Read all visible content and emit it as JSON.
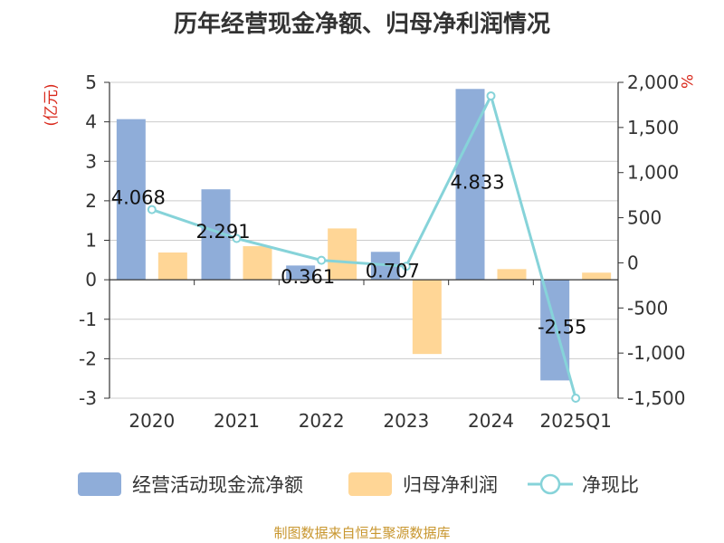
{
  "chart_data": {
    "type": "bar",
    "title": "历年经营现金净额、归母净利润情况",
    "categories": [
      "2020",
      "2021",
      "2022",
      "2023",
      "2024",
      "2025Q1"
    ],
    "y_left_unit": "(亿元)",
    "y_right_unit": "%",
    "y_left_range": [
      -3,
      5
    ],
    "y_left_ticks": [
      "5",
      "4",
      "3",
      "2",
      "1",
      "0",
      "-1",
      "-2",
      "-3"
    ],
    "y_right_range": [
      -1500,
      2000
    ],
    "y_right_ticks": [
      "2,000",
      "1,500",
      "1,000",
      "500",
      "0",
      "-500",
      "-1,000",
      "-1,500"
    ],
    "grid": true,
    "legend_position": "bottom",
    "series": [
      {
        "name": "经营活动现金流净额",
        "type": "bar",
        "axis": "left",
        "color": "#8fadd9",
        "values": [
          4.068,
          2.291,
          0.361,
          0.707,
          4.833,
          -2.55
        ],
        "labels": [
          "4.068",
          "2.291",
          "0.361",
          "0.707",
          "4.833",
          "-2.55"
        ]
      },
      {
        "name": "归母净利润",
        "type": "bar",
        "axis": "left",
        "color": "#ffd696",
        "values": [
          0.69,
          0.85,
          1.3,
          -1.88,
          0.27,
          0.18
        ]
      },
      {
        "name": "净现比",
        "type": "line",
        "axis": "right",
        "color": "#86d3d9",
        "values": [
          590,
          270,
          28,
          -38,
          1850,
          -1500
        ]
      }
    ]
  },
  "source": "制图数据来自恒生聚源数据库"
}
